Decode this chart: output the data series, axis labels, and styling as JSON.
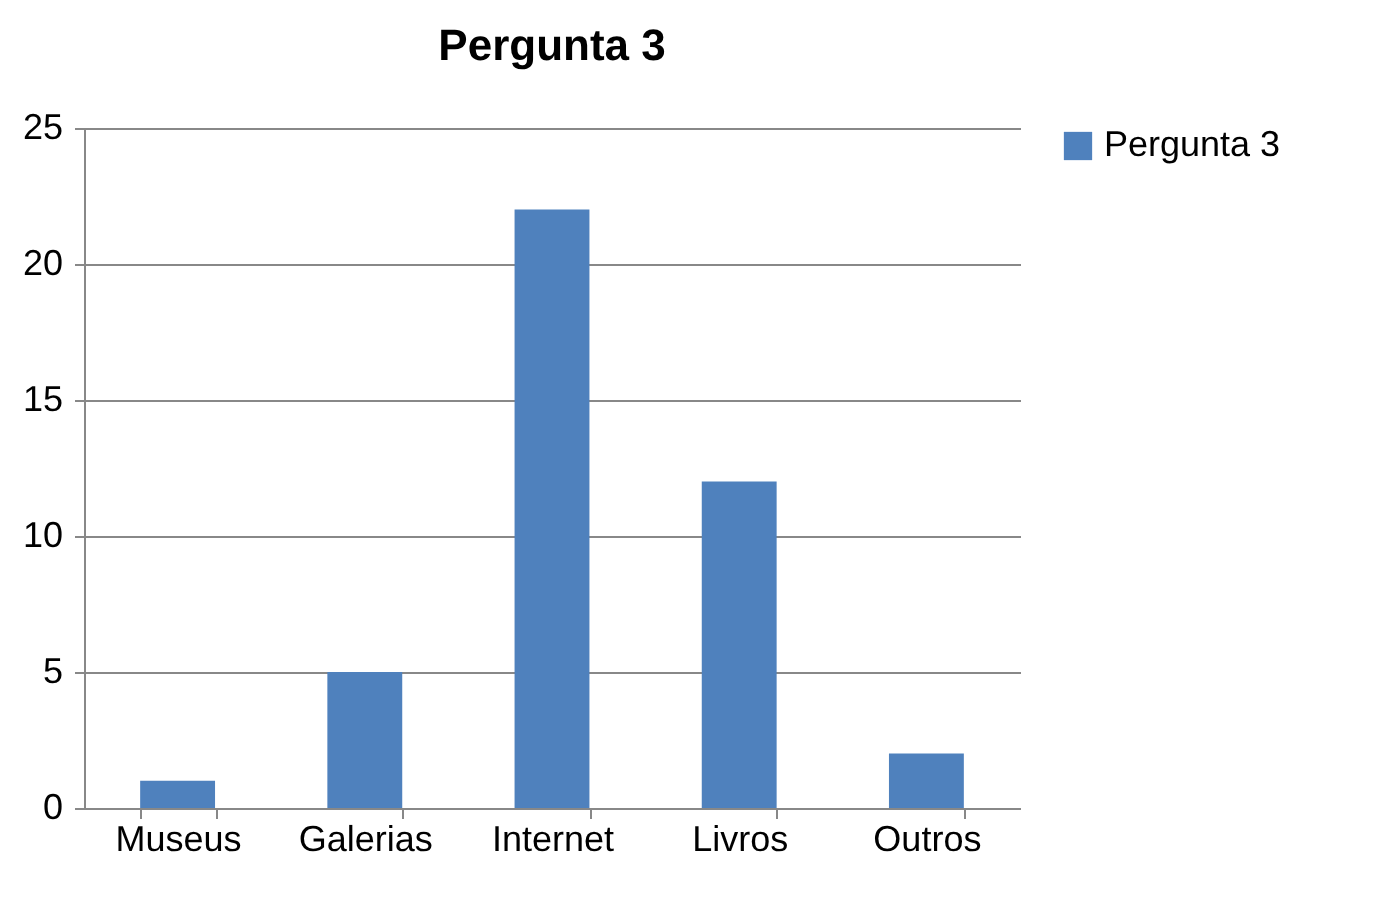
{
  "chart_data": {
    "type": "bar",
    "title": "Pergunta 3",
    "categories": [
      "Museus",
      "Galerias",
      "Internet",
      "Livros",
      "Outros"
    ],
    "series": [
      {
        "name": "Pergunta 3",
        "color": "#4f81bd",
        "values": [
          1,
          5,
          22,
          12,
          2
        ]
      }
    ],
    "ylim": [
      0,
      25
    ],
    "yticks": [
      0,
      5,
      10,
      15,
      20,
      25
    ],
    "grid": "y",
    "legend": "right"
  }
}
